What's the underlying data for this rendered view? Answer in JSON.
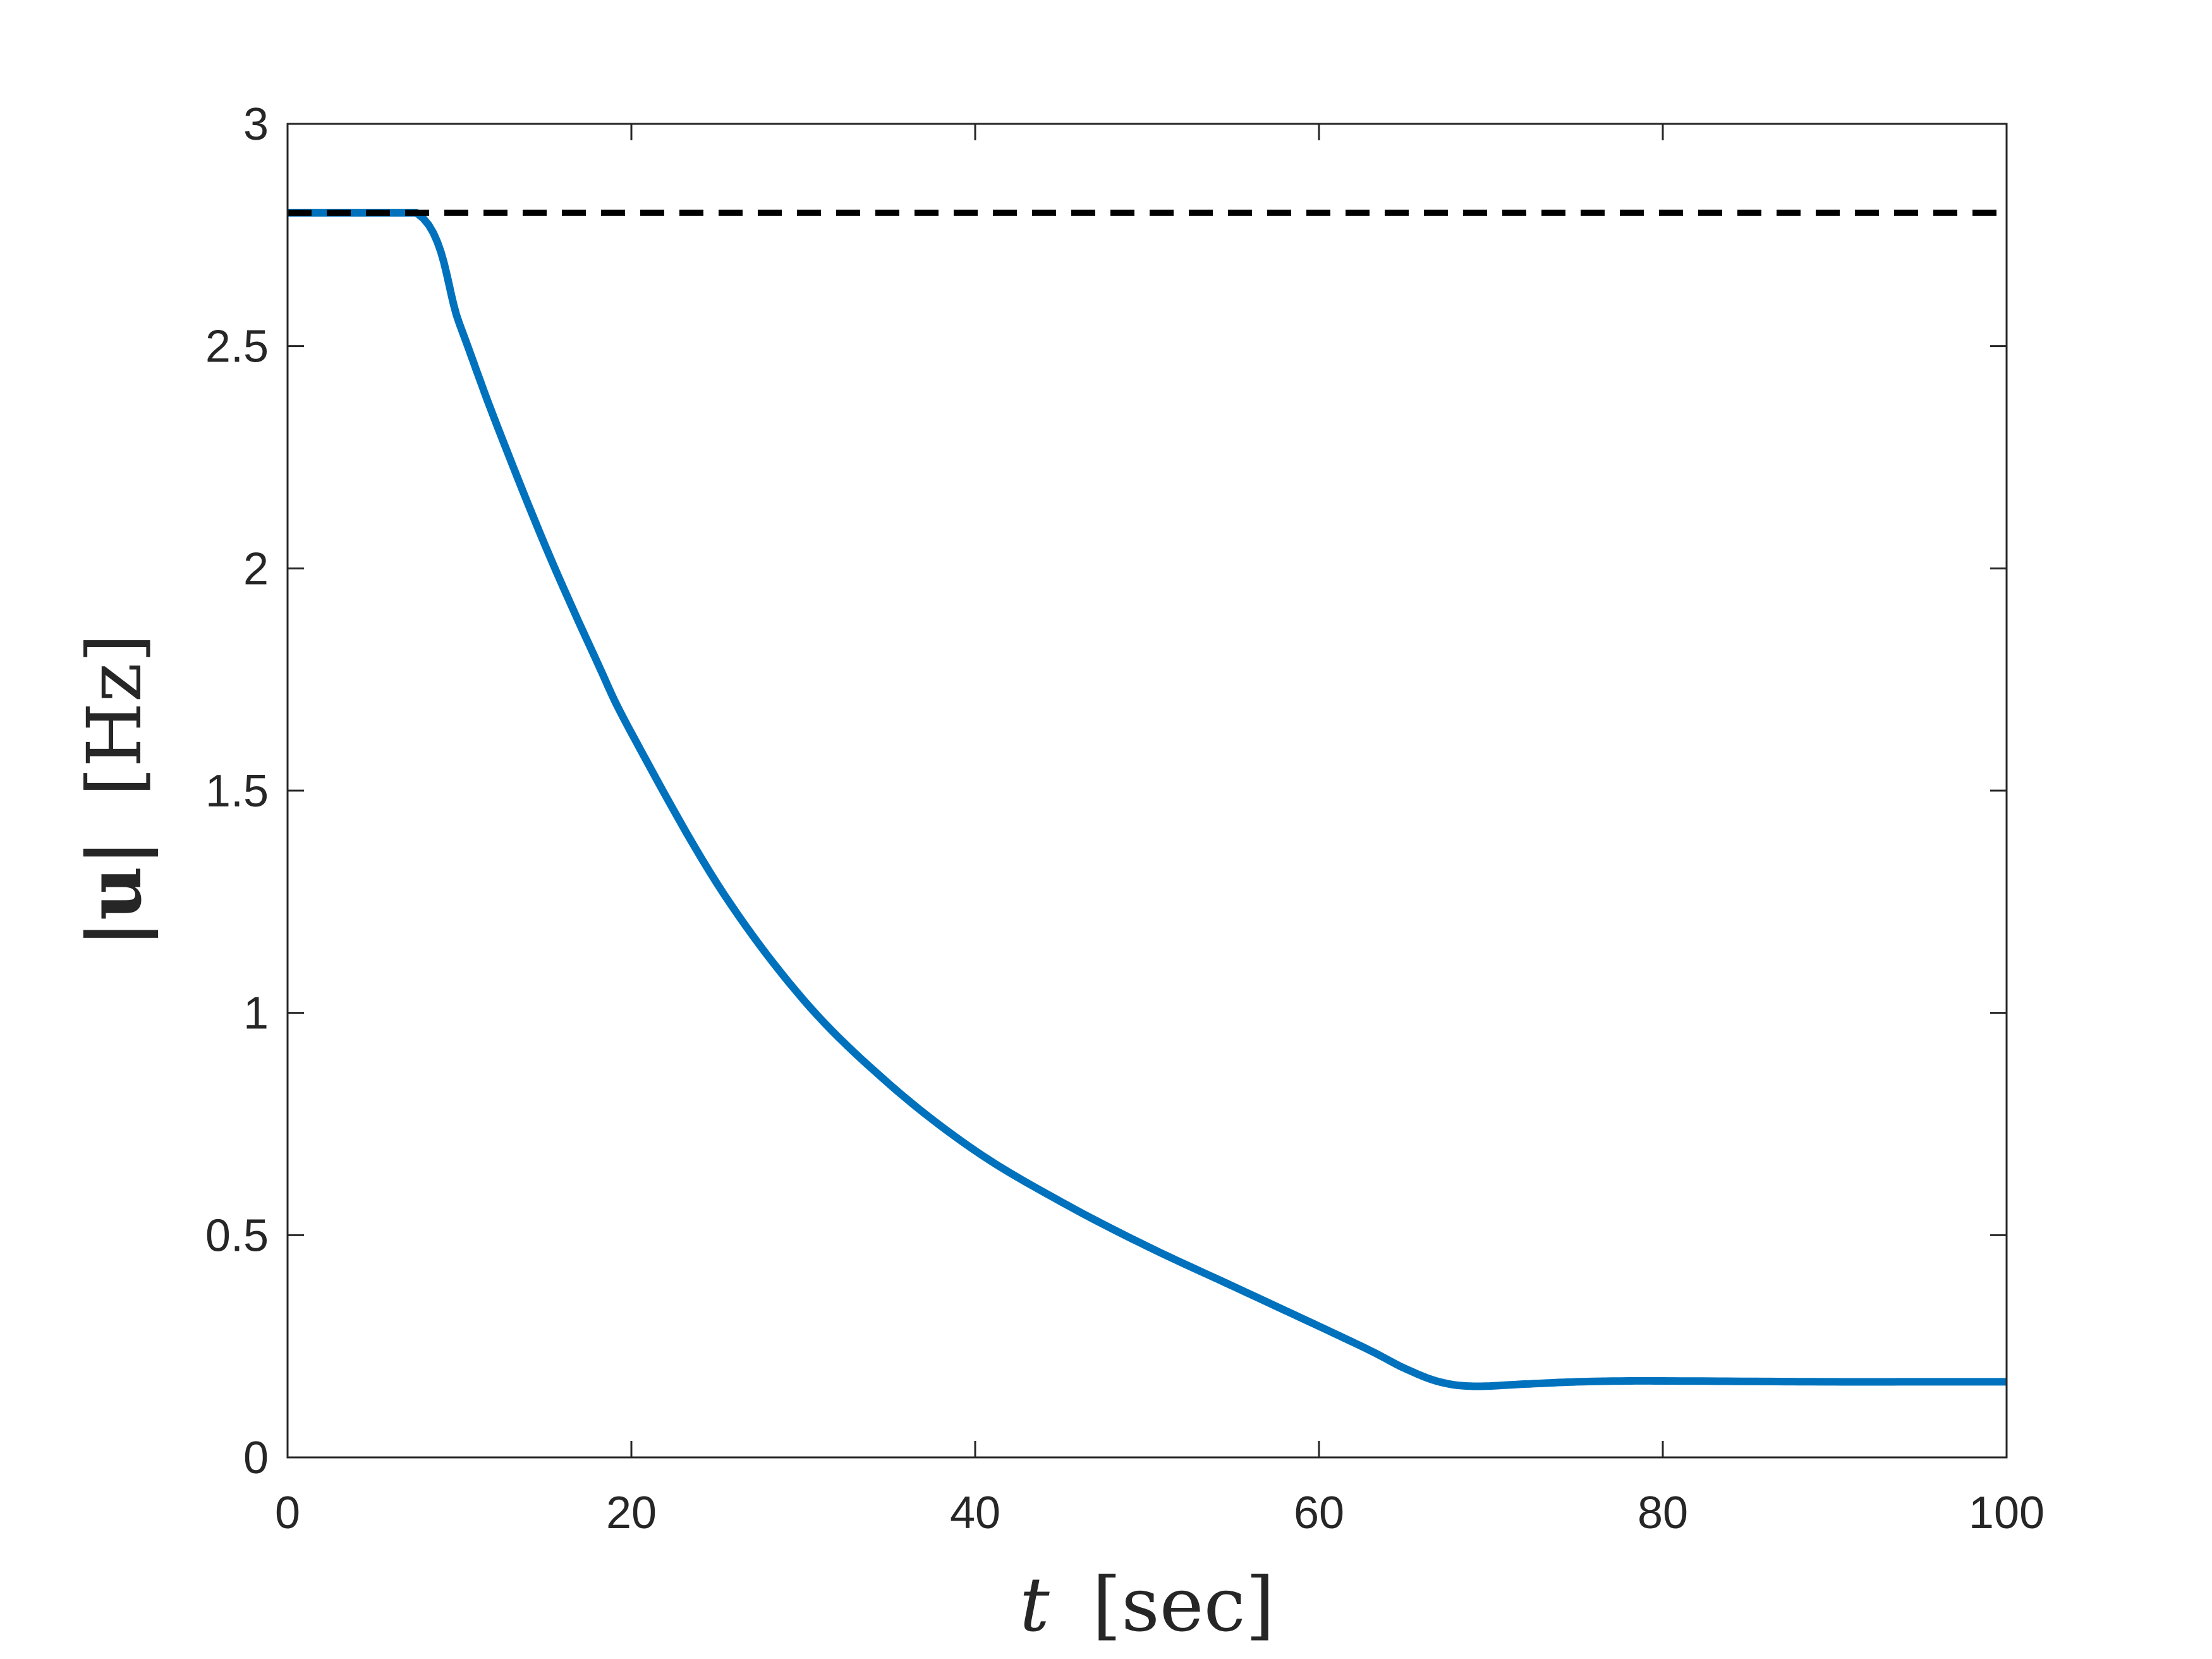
{
  "chart_data": {
    "type": "line",
    "title": "",
    "xlabel": "t [sec]",
    "ylabel": "|u| [Hz]",
    "xlabel_parts": {
      "var": "t",
      "unit": "[sec]"
    },
    "ylabel_parts": {
      "var": "|u|",
      "unit": "[Hz]"
    },
    "xlim": [
      0,
      100
    ],
    "ylim": [
      0,
      3
    ],
    "xticks": [
      0,
      20,
      40,
      60,
      80,
      100
    ],
    "xtick_labels": [
      "0",
      "20",
      "40",
      "60",
      "80",
      "100"
    ],
    "yticks": [
      0,
      0.5,
      1,
      1.5,
      2,
      2.5,
      3
    ],
    "ytick_labels": [
      "0",
      "0.5",
      "1",
      "1.5",
      "2",
      "2.5",
      "3"
    ],
    "grid": false,
    "legend": "none",
    "series": [
      {
        "color": "#0072BD",
        "style": "solid",
        "x": [
          0,
          7.5,
          10,
          12,
          15,
          18,
          20,
          25,
          30,
          35,
          40,
          45,
          50,
          55,
          60,
          63,
          65,
          67,
          69,
          72,
          75,
          78,
          80,
          85,
          90,
          95,
          100
        ],
        "y": [
          2.8,
          2.8,
          2.55,
          2.34,
          2.05,
          1.79,
          1.63,
          1.29,
          1.03,
          0.84,
          0.69,
          0.575,
          0.475,
          0.385,
          0.295,
          0.24,
          0.2,
          0.17,
          0.16,
          0.165,
          0.17,
          0.172,
          0.172,
          0.171,
          0.17,
          0.17,
          0.17
        ]
      },
      {
        "color": "#000000",
        "style": "dashed",
        "x": [
          0,
          100
        ],
        "y": [
          2.8,
          2.8
        ]
      }
    ]
  }
}
